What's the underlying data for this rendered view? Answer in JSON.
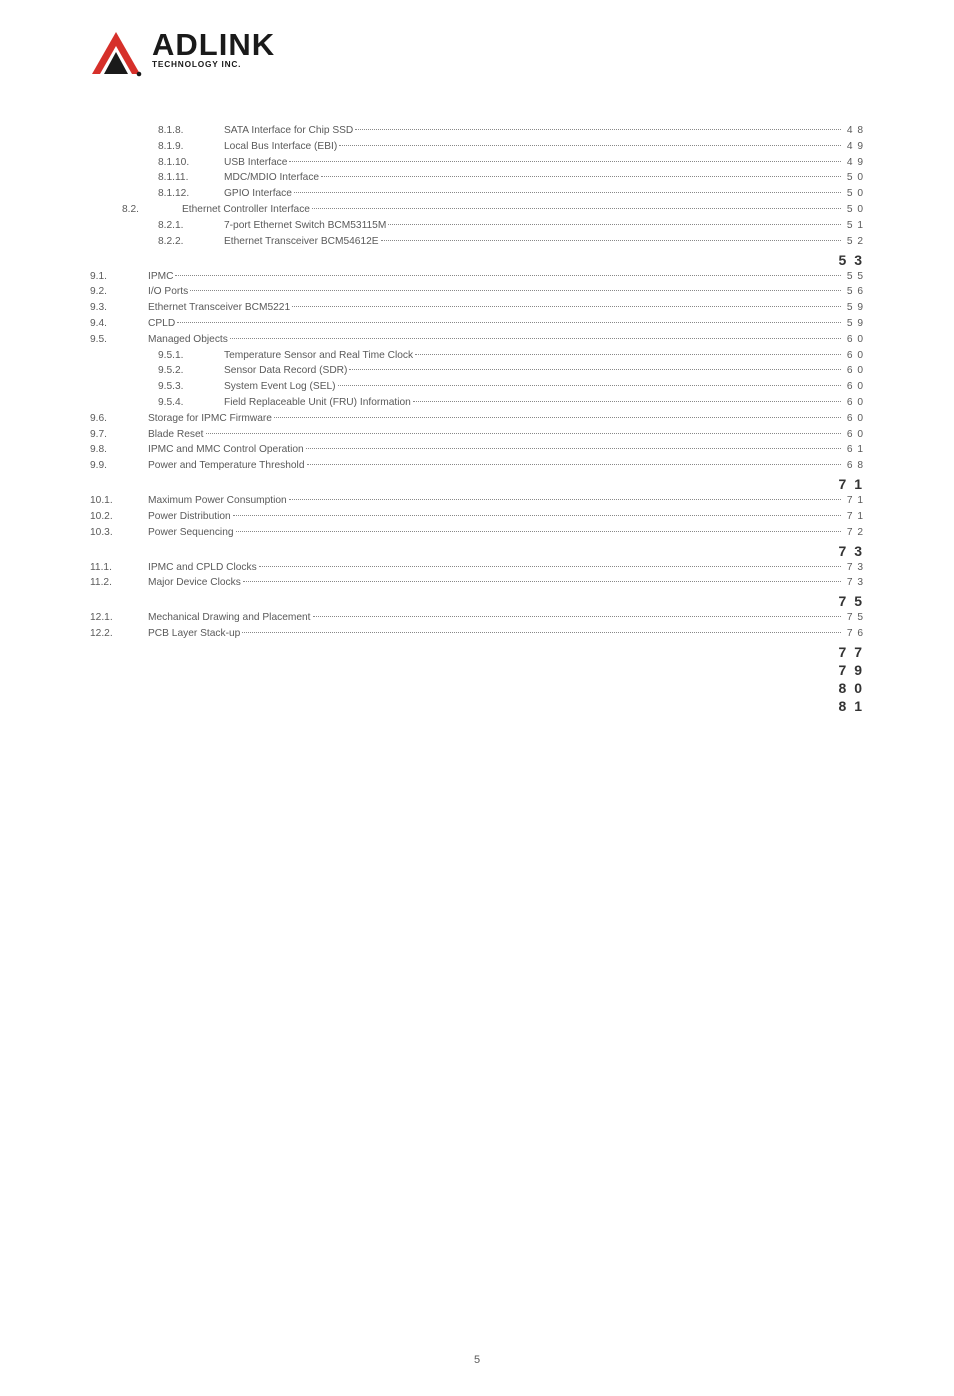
{
  "logo": {
    "name": "ADLINK",
    "tagline": "TECHNOLOGY INC.",
    "colors": {
      "red": "#d6302a",
      "dark": "#1a1a1a"
    }
  },
  "toc": {
    "rows": [
      {
        "indent": 2,
        "num": "8.1.8.",
        "title": "SATA Interface for Chip SSD",
        "page": "4 8"
      },
      {
        "indent": 2,
        "num": "8.1.9.",
        "title": "Local Bus Interface (EBI)",
        "page": "4 9"
      },
      {
        "indent": 2,
        "num": "8.1.10.",
        "title": "USB Interface",
        "page": "4 9"
      },
      {
        "indent": 2,
        "num": "8.1.11.",
        "title": "MDC/MDIO Interface",
        "page": "5 0"
      },
      {
        "indent": 2,
        "num": "8.1.12.",
        "title": "GPIO Interface",
        "page": "5 0"
      },
      {
        "indent": 1,
        "num": "8.2.",
        "title": "Ethernet Controller Interface",
        "page": "5 0"
      },
      {
        "indent": 2,
        "num": "8.2.1.",
        "title": "7-port Ethernet Switch BCM53115M",
        "page": "5 1"
      },
      {
        "indent": 2,
        "num": "8.2.2.",
        "title": "Ethernet Transceiver BCM54612E",
        "page": "5 2"
      },
      {
        "type": "section",
        "page": "5 3"
      },
      {
        "indent": 0,
        "num": "9.1.",
        "title": "IPMC",
        "page": "5 5"
      },
      {
        "indent": 0,
        "num": "9.2.",
        "title": "I/O Ports",
        "page": "5 6"
      },
      {
        "indent": 0,
        "num": "9.3.",
        "title": "Ethernet Transceiver BCM5221",
        "page": "5 9"
      },
      {
        "indent": 0,
        "num": "9.4.",
        "title": "CPLD",
        "page": "5 9"
      },
      {
        "indent": 0,
        "num": "9.5.",
        "title": "Managed Objects",
        "page": "6 0"
      },
      {
        "indent": 2,
        "num": "9.5.1.",
        "title": "Temperature Sensor and Real Time Clock",
        "page": "6 0"
      },
      {
        "indent": 2,
        "num": "9.5.2.",
        "title": "Sensor Data Record (SDR)",
        "page": "6 0"
      },
      {
        "indent": 2,
        "num": "9.5.3.",
        "title": "System Event Log (SEL)",
        "page": "6 0"
      },
      {
        "indent": 2,
        "num": "9.5.4.",
        "title": "Field Replaceable Unit (FRU) Information",
        "page": "6 0"
      },
      {
        "indent": 0,
        "num": "9.6.",
        "title": "Storage for IPMC Firmware",
        "page": "6 0"
      },
      {
        "indent": 0,
        "num": "9.7.",
        "title": "Blade Reset",
        "page": "6 0"
      },
      {
        "indent": 0,
        "num": "9.8.",
        "title": "IPMC and MMC Control Operation",
        "page": "6 1"
      },
      {
        "indent": 0,
        "num": "9.9.",
        "title": "Power and Temperature Threshold",
        "page": "6 8"
      },
      {
        "type": "section",
        "page": "7 1"
      },
      {
        "indent": 0,
        "num": "10.1.",
        "title": "Maximum Power Consumption",
        "page": "7 1"
      },
      {
        "indent": 0,
        "num": "10.2.",
        "title": "Power Distribution",
        "page": "7 1"
      },
      {
        "indent": 0,
        "num": "10.3.",
        "title": "Power Sequencing",
        "page": "7 2"
      },
      {
        "type": "section",
        "page": "7 3"
      },
      {
        "indent": 0,
        "num": "11.1.",
        "title": "IPMC and CPLD Clocks",
        "page": "7 3"
      },
      {
        "indent": 0,
        "num": "11.2.",
        "title": "Major Device Clocks",
        "page": "7 3"
      },
      {
        "type": "section",
        "page": "7 5"
      },
      {
        "indent": 0,
        "num": "12.1.",
        "title": "Mechanical Drawing and Placement",
        "page": "7 5"
      },
      {
        "indent": 0,
        "num": "12.2.",
        "title": "PCB Layer Stack-up",
        "page": "7 6"
      },
      {
        "type": "section",
        "page": "7 7"
      },
      {
        "type": "section",
        "page": "7 9"
      },
      {
        "type": "section",
        "page": "8 0"
      },
      {
        "type": "section",
        "page": "8 1"
      }
    ]
  },
  "footer": {
    "pageNumber": "5"
  },
  "style": {
    "body_font_size": 10.2,
    "body_color": "#5a5a5a",
    "section_font_size": 14,
    "section_color": "#333",
    "leader_color": "#888",
    "background": "#ffffff"
  }
}
